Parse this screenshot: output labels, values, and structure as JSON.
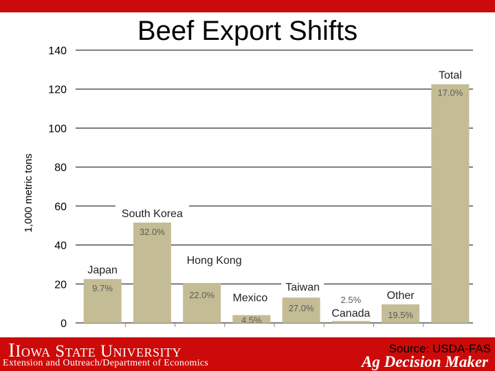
{
  "slide": {
    "title": "Beef Export Shifts"
  },
  "footer": {
    "university": "Iowa State University",
    "department": "Extension and Outreach/Department of Economics",
    "source": "Source: USDA-FAS",
    "brand": "Ag Decision Maker"
  },
  "colors": {
    "accent_red": "#cc0a0a",
    "bar_fill": "#c4bc94",
    "pct_label": "#5a5a5a"
  },
  "chart_data": {
    "type": "bar",
    "title": "",
    "xlabel": "",
    "ylabel": "1,000 metric tons",
    "ylim": [
      0,
      140
    ],
    "yticks": [
      0,
      20,
      40,
      60,
      80,
      100,
      120,
      140
    ],
    "grid": true,
    "legend": "none",
    "categories": [
      "Japan",
      "South Korea",
      "Hong Kong",
      "Mexico",
      "Taiwan",
      "Canada",
      "Other",
      "Total"
    ],
    "values": [
      22.5,
      51.5,
      20.5,
      4,
      13,
      1,
      9.5,
      122.5
    ],
    "pct_labels": [
      "9.7%",
      "32.0%",
      "22.0%",
      "4.5%",
      "27.0%",
      "2.5%",
      "19.5%",
      "17.0%"
    ]
  }
}
